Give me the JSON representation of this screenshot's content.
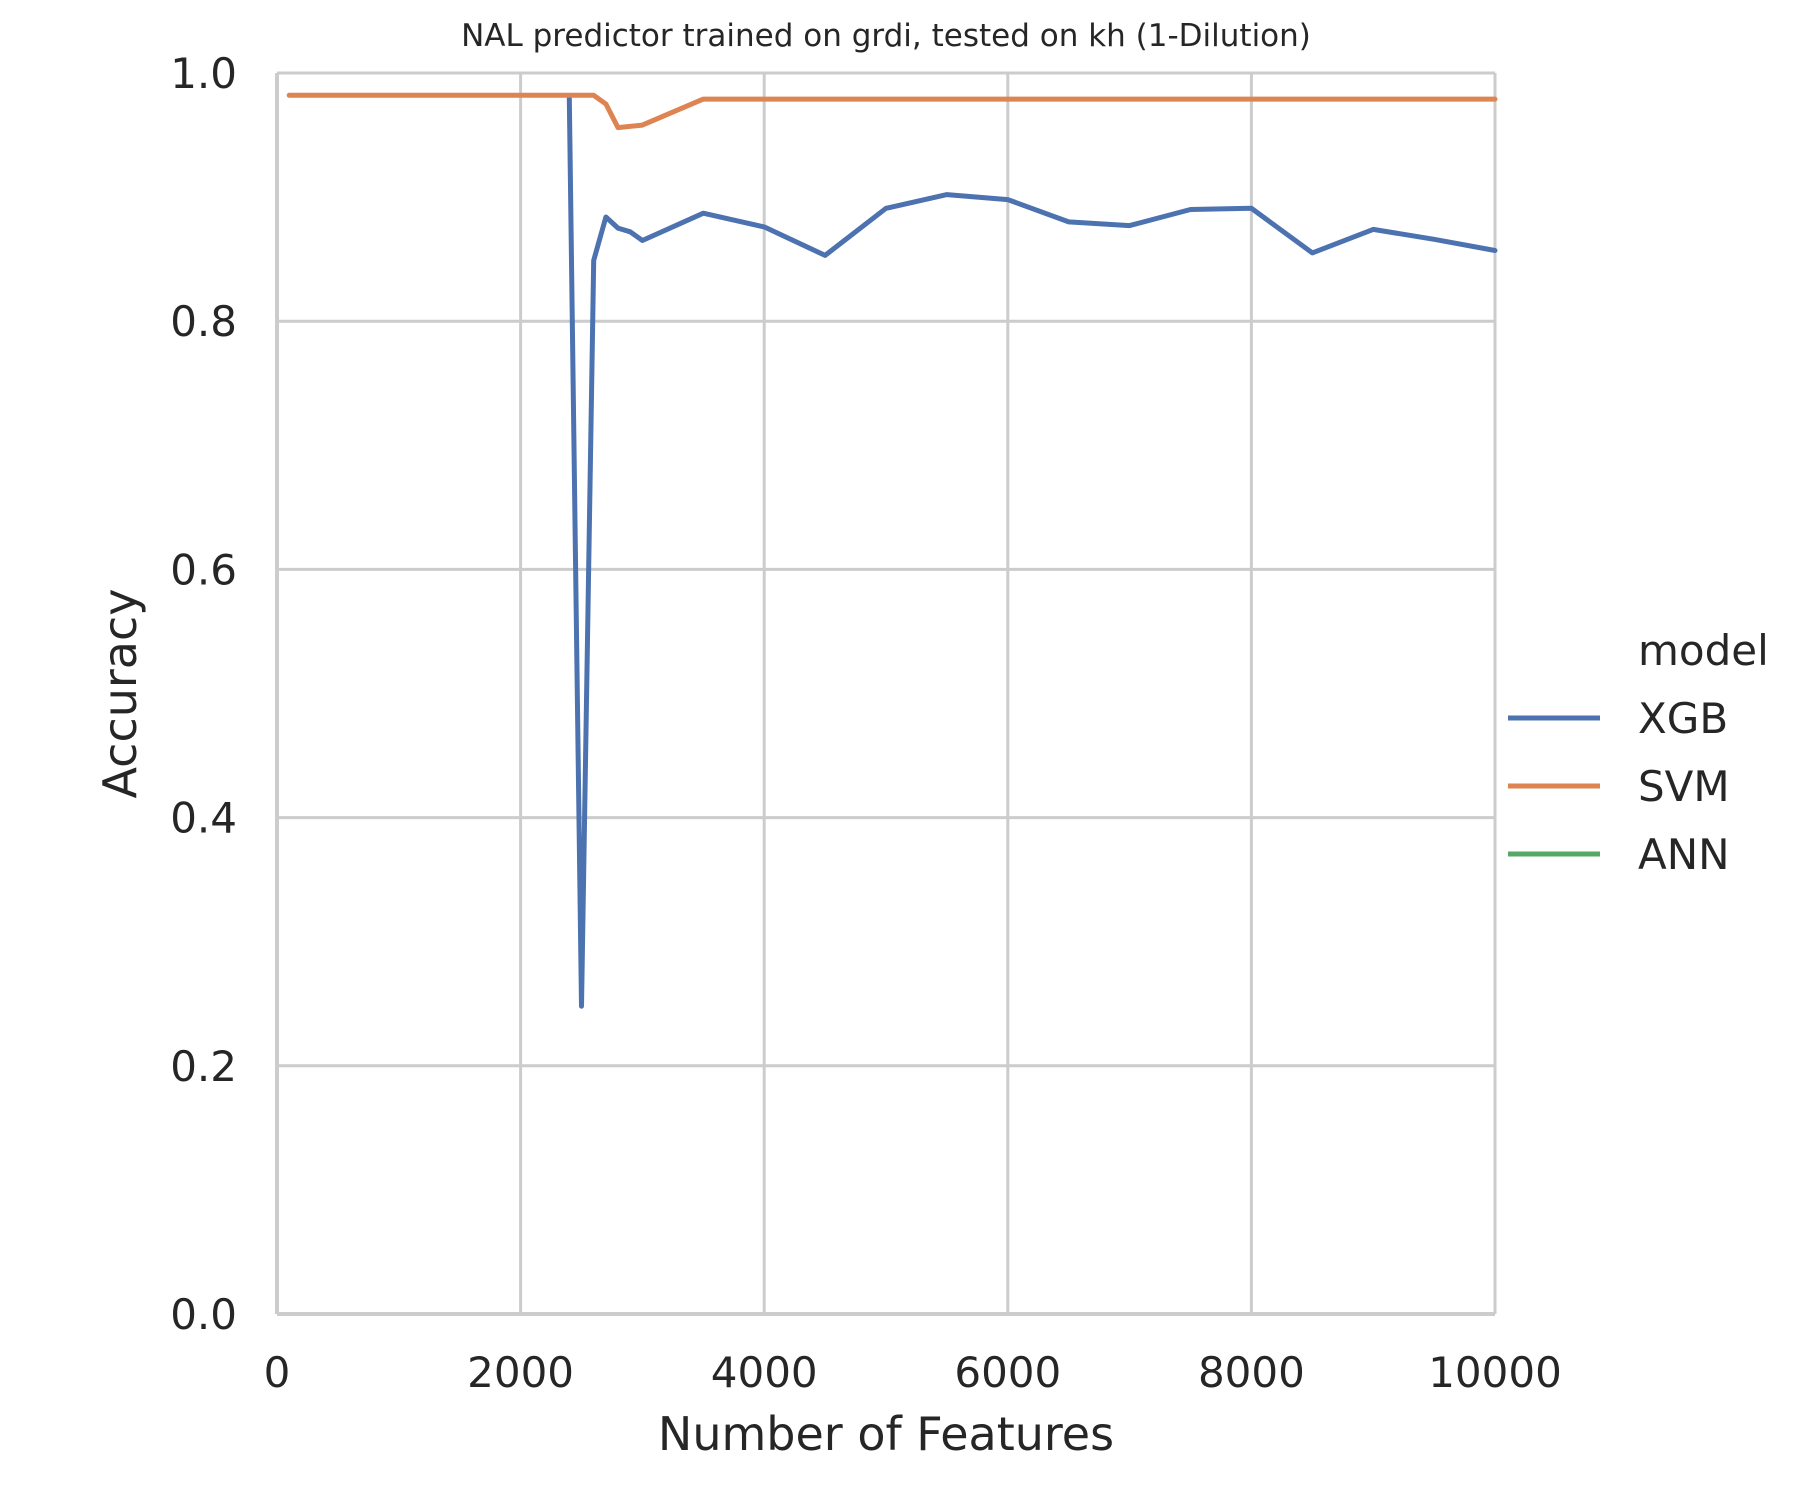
{
  "chart_data": {
    "type": "line",
    "title": "NAL predictor trained on grdi, tested on kh (1-Dilution)",
    "xlabel": "Number of Features",
    "ylabel": "Accuracy",
    "xlim": [
      0,
      10000
    ],
    "ylim": [
      0,
      1.0
    ],
    "xticks": [
      0,
      2000,
      4000,
      6000,
      8000,
      10000
    ],
    "xtick_labels": [
      "0",
      "2000",
      "4000",
      "6000",
      "8000",
      "10000"
    ],
    "yticks": [
      0,
      0.2,
      0.4,
      0.6,
      0.8,
      1.0
    ],
    "ytick_labels": [
      "0.0",
      "0.2",
      "0.4",
      "0.6",
      "0.8",
      "1.0"
    ],
    "grid": true,
    "legend": {
      "title": "model",
      "placement": "right"
    },
    "series": [
      {
        "name": "XGB",
        "color": "#4c72b0",
        "x": [
          2400,
          2500,
          2600,
          2700,
          2800,
          2900,
          3000,
          3500,
          4000,
          4500,
          5000,
          5500,
          6000,
          6500,
          7000,
          7500,
          8000,
          8500,
          9000,
          9500,
          10000
        ],
        "y": [
          0.98,
          0.248,
          0.849,
          0.884,
          0.875,
          0.872,
          0.865,
          0.887,
          0.876,
          0.853,
          0.891,
          0.902,
          0.898,
          0.88,
          0.877,
          0.89,
          0.891,
          0.855,
          0.874,
          0.866,
          0.857
        ]
      },
      {
        "name": "SVM",
        "color": "#dd8452",
        "x": [
          100,
          500,
          1000,
          1500,
          2000,
          2400,
          2500,
          2600,
          2700,
          2800,
          3000,
          3500,
          4000,
          5000,
          6000,
          7000,
          8000,
          9000,
          10000
        ],
        "y": [
          0.982,
          0.982,
          0.982,
          0.982,
          0.982,
          0.982,
          0.982,
          0.982,
          0.975,
          0.956,
          0.958,
          0.979,
          0.979,
          0.979,
          0.979,
          0.979,
          0.979,
          0.979,
          0.979
        ]
      },
      {
        "name": "ANN",
        "color": "#55a868",
        "x": [],
        "y": []
      }
    ]
  }
}
